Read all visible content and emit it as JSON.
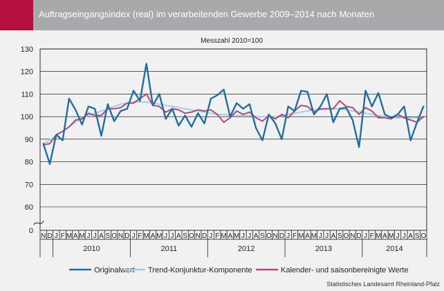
{
  "title": "Auftragseingangsindex (real) im verarbeitenden Gewerbe 2009–2014 nach Monaten",
  "source": "Statistisches Landesamt Rheinland-Pfalz",
  "colors": {
    "title_bar": "#a7a9ac",
    "accent": "#b5113f",
    "plot_bg": "#f1f1f2",
    "original": "#1d6fa0",
    "trend": "#9fd0e3",
    "adjusted": "#b5457a"
  },
  "chart_data": {
    "type": "line",
    "subtitle": "Messzahl 2010=100",
    "ylim": [
      0,
      130
    ],
    "y_axis_break": "between 0 and 60",
    "yticks": [
      0,
      60,
      70,
      80,
      90,
      100,
      110,
      120,
      130
    ],
    "grid": "horizontal",
    "legend_position": "bottom",
    "categories": [
      "N",
      "D",
      "J",
      "F",
      "M",
      "A",
      "M",
      "J",
      "J",
      "A",
      "S",
      "O",
      "N",
      "D",
      "J",
      "F",
      "M",
      "A",
      "M",
      "J",
      "J",
      "A",
      "S",
      "O",
      "N",
      "D",
      "J",
      "F",
      "M",
      "A",
      "M",
      "J",
      "J",
      "A",
      "S",
      "O",
      "N",
      "D",
      "J",
      "F",
      "M",
      "A",
      "M",
      "J",
      "J",
      "A",
      "S",
      "O",
      "N",
      "D",
      "J",
      "F",
      "M",
      "A",
      "M",
      "J",
      "J",
      "A",
      "S",
      "O"
    ],
    "year_labels": [
      {
        "label": "2010",
        "start": 2,
        "end": 13
      },
      {
        "label": "2011",
        "start": 14,
        "end": 25
      },
      {
        "label": "2012",
        "start": 26,
        "end": 37
      },
      {
        "label": "2013",
        "start": 38,
        "end": 49
      },
      {
        "label": "2014",
        "start": 50,
        "end": 59
      }
    ],
    "series": [
      {
        "name": "Originalwert",
        "color": "#1d6fa0",
        "values": [
          88,
          79,
          92,
          89.5,
          108,
          103,
          96.5,
          104.5,
          103.5,
          91.5,
          105.5,
          98,
          102.5,
          103.5,
          111.5,
          107,
          123.5,
          105,
          110,
          99,
          103.5,
          96,
          100.5,
          95.5,
          101.5,
          97,
          108,
          109.5,
          112,
          100,
          106,
          103.5,
          105.5,
          95,
          89.5,
          101,
          97,
          90,
          104.5,
          102.5,
          111.5,
          111,
          101,
          104.5,
          110,
          97.5,
          103.5,
          104,
          98.5,
          86.5,
          111.5,
          104.5,
          110.5,
          101,
          99.5,
          101,
          104.5,
          89.5,
          97.5,
          104.5
        ]
      },
      {
        "name": "Trend-Konjunktur-Komponente",
        "color": "#9fd0e3",
        "values": [
          88,
          89.5,
          91.5,
          93.5,
          95.5,
          97.5,
          99.5,
          100.5,
          101.5,
          102.5,
          103.5,
          104.5,
          105.5,
          106,
          106.5,
          106.5,
          106.5,
          106,
          105.5,
          105,
          104.5,
          104,
          103.5,
          103,
          102.5,
          102,
          101.5,
          101,
          101,
          100.5,
          100.5,
          100.5,
          100.5,
          100,
          100,
          100,
          100,
          100.5,
          101,
          101.5,
          102,
          102.5,
          103,
          103,
          103.5,
          103.5,
          103.5,
          103,
          102.5,
          102,
          101.5,
          101,
          100.5,
          100,
          99.5,
          99.5,
          99.5,
          99.5,
          99.5,
          99.5
        ]
      },
      {
        "name": "Kalender- und saisonbereinigte Werte",
        "color": "#b5457a",
        "values": [
          87.5,
          88,
          92,
          93.5,
          95.5,
          98.5,
          99,
          101.5,
          100.5,
          100.5,
          103.5,
          103.5,
          104,
          106,
          106,
          108,
          110,
          105,
          104.5,
          102,
          103.5,
          103,
          101.5,
          102,
          103,
          102.5,
          103,
          101,
          97.5,
          99.5,
          102.5,
          101,
          102,
          99.5,
          98,
          100.5,
          99,
          101,
          99.5,
          102.5,
          105,
          104.5,
          102,
          103.5,
          103.5,
          103.5,
          107,
          104.5,
          104,
          101,
          104,
          102.5,
          99.5,
          99.5,
          99,
          101,
          99.5,
          98.5,
          97.5,
          100
        ]
      }
    ]
  }
}
